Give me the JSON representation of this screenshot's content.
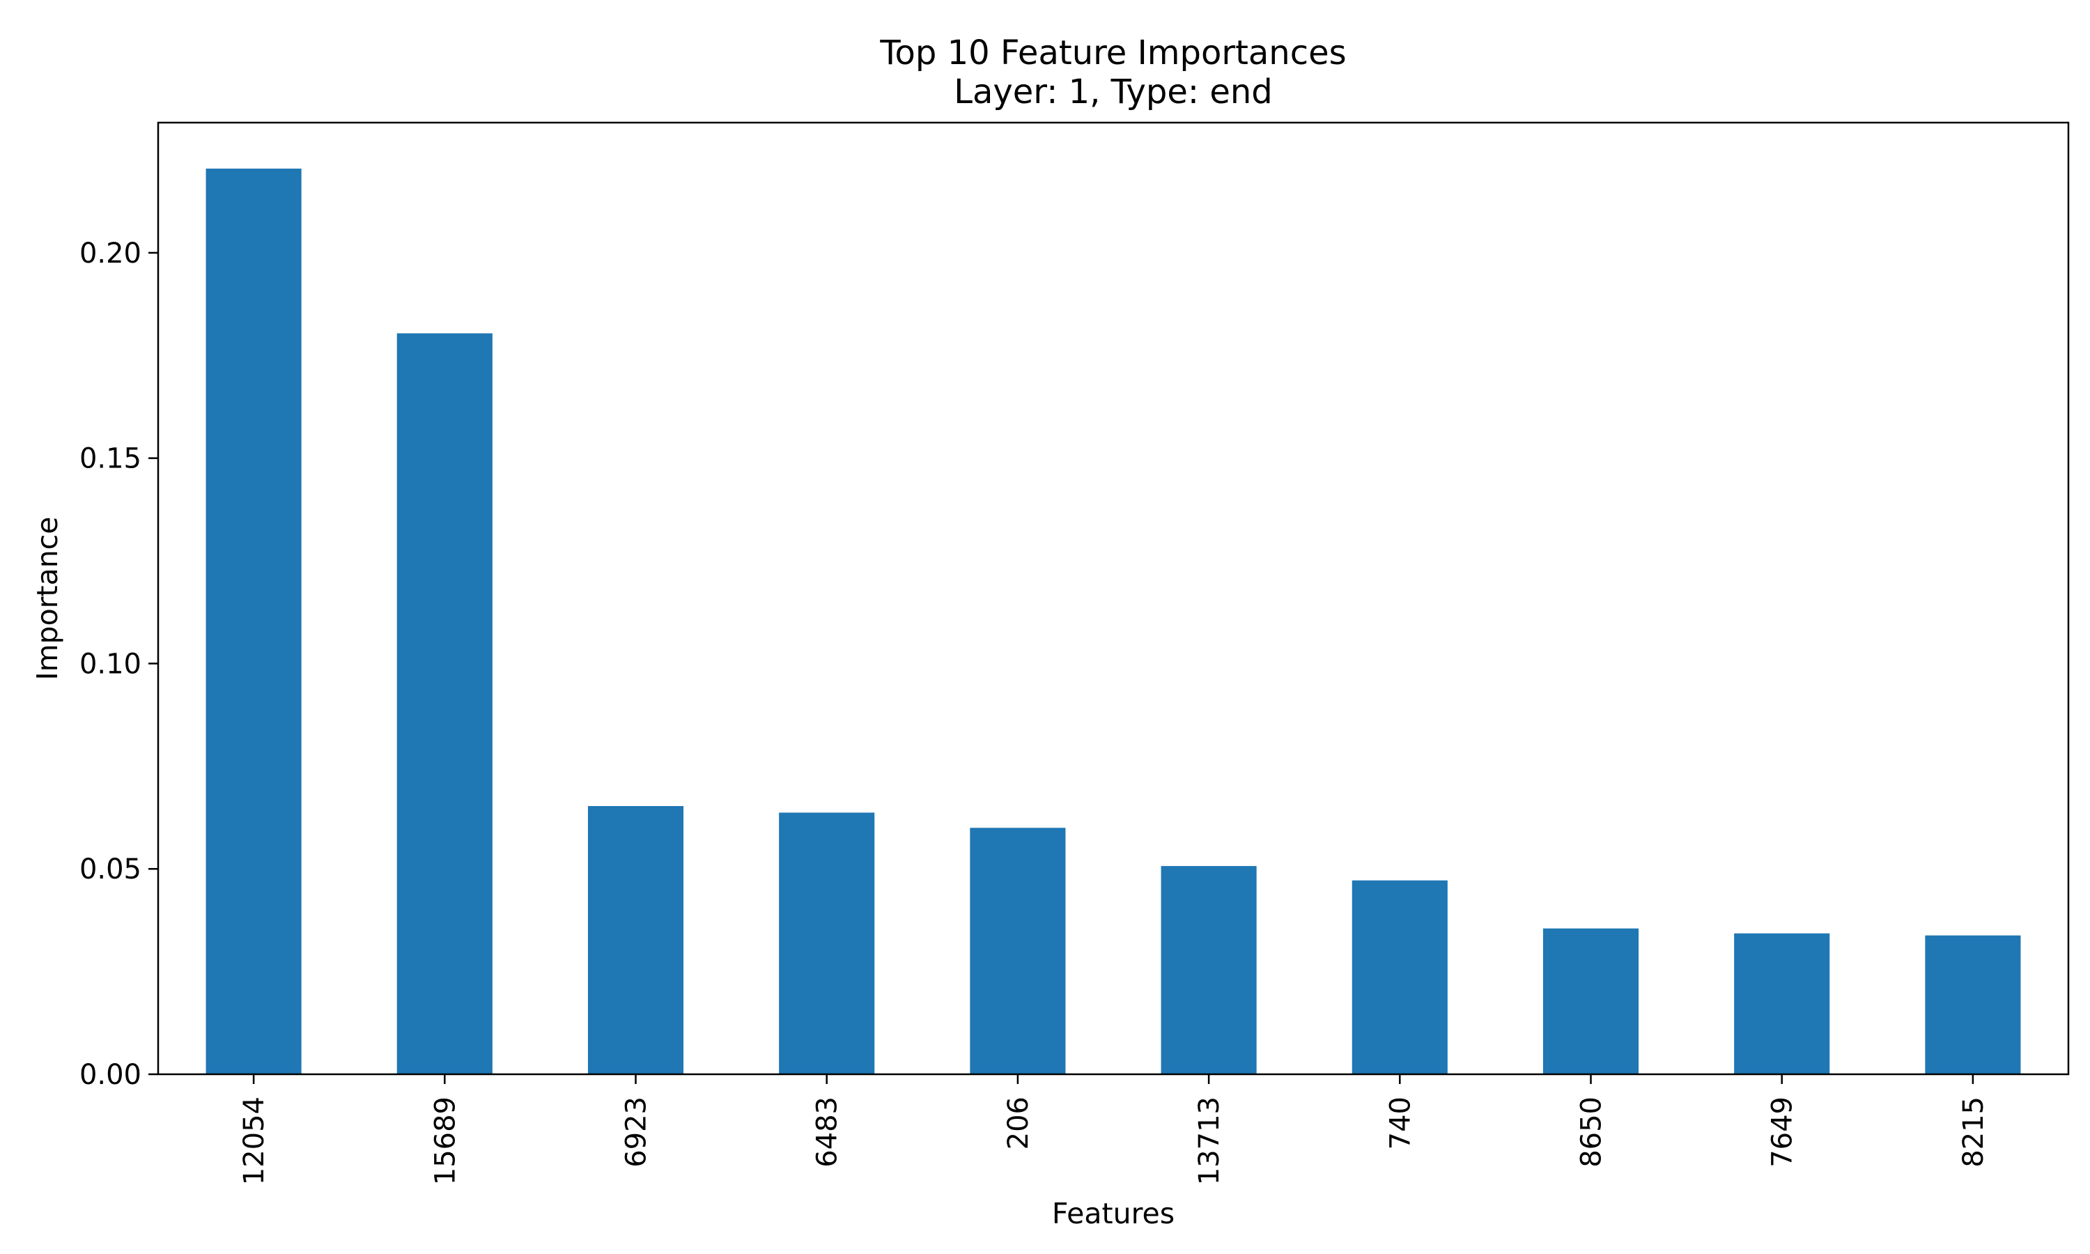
{
  "chart_data": {
    "type": "bar",
    "title": "Top 10 Feature Importances",
    "subtitle": "Layer: 1, Type: end",
    "xlabel": "Features",
    "ylabel": "Importance",
    "categories": [
      "12054",
      "15689",
      "6923",
      "6483",
      "206",
      "13713",
      "740",
      "8650",
      "7649",
      "8215"
    ],
    "values": [
      0.2205,
      0.1804,
      0.0653,
      0.0637,
      0.06,
      0.0507,
      0.0472,
      0.0355,
      0.0343,
      0.0338
    ],
    "ylim": [
      0,
      0.2317
    ],
    "yticks": [
      0.0,
      0.05,
      0.1,
      0.15,
      0.2
    ],
    "ytick_labels": [
      "0.00",
      "0.05",
      "0.10",
      "0.15",
      "0.20"
    ],
    "grid": false,
    "legend": "none",
    "bar_color": "#1f77b4"
  }
}
